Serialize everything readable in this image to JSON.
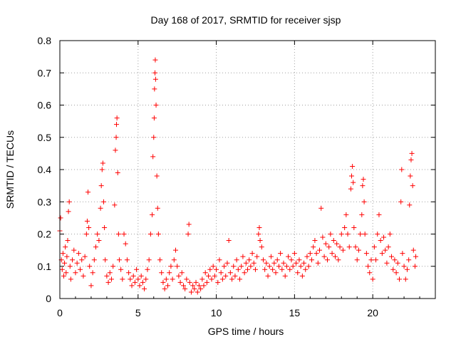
{
  "chart_data": {
    "type": "scatter",
    "title": "Day 168 of 2017, SRMTID for receiver sjsp",
    "xlabel": "GPS time / hours",
    "ylabel": "SRMTID / TECUs",
    "xlim": [
      0,
      24
    ],
    "ylim": [
      0,
      0.8
    ],
    "xticks": [
      "0",
      "5",
      "10",
      "15",
      "20"
    ],
    "yticks": [
      "0",
      "0.1",
      "0.2",
      "0.3",
      "0.4",
      "0.5",
      "0.6",
      "0.7",
      "0.8"
    ],
    "grid": true,
    "marker": "+",
    "color": "#ff0000",
    "series": [
      {
        "name": "SRMTID",
        "points": [
          [
            0.0,
            0.21
          ],
          [
            0.05,
            0.25
          ],
          [
            0.1,
            0.12
          ],
          [
            0.15,
            0.09
          ],
          [
            0.2,
            0.14
          ],
          [
            0.25,
            0.07
          ],
          [
            0.3,
            0.11
          ],
          [
            0.35,
            0.16
          ],
          [
            0.4,
            0.08
          ],
          [
            0.45,
            0.13
          ],
          [
            0.5,
            0.18
          ],
          [
            0.55,
            0.27
          ],
          [
            0.6,
            0.3
          ],
          [
            0.65,
            0.1
          ],
          [
            0.7,
            0.06
          ],
          [
            0.8,
            0.12
          ],
          [
            0.9,
            0.15
          ],
          [
            1.0,
            0.08
          ],
          [
            1.1,
            0.11
          ],
          [
            1.2,
            0.14
          ],
          [
            1.3,
            0.09
          ],
          [
            1.4,
            0.12
          ],
          [
            1.5,
            0.07
          ],
          [
            1.6,
            0.13
          ],
          [
            1.7,
            0.2
          ],
          [
            1.75,
            0.24
          ],
          [
            1.8,
            0.33
          ],
          [
            1.85,
            0.22
          ],
          [
            1.9,
            0.1
          ],
          [
            2.0,
            0.04
          ],
          [
            2.1,
            0.08
          ],
          [
            2.2,
            0.12
          ],
          [
            2.3,
            0.16
          ],
          [
            2.4,
            0.2
          ],
          [
            2.5,
            0.18
          ],
          [
            2.6,
            0.28
          ],
          [
            2.65,
            0.35
          ],
          [
            2.7,
            0.4
          ],
          [
            2.75,
            0.42
          ],
          [
            2.8,
            0.3
          ],
          [
            2.85,
            0.22
          ],
          [
            2.9,
            0.12
          ],
          [
            3.0,
            0.07
          ],
          [
            3.1,
            0.05
          ],
          [
            3.2,
            0.08
          ],
          [
            3.3,
            0.06
          ],
          [
            3.4,
            0.1
          ],
          [
            3.5,
            0.29
          ],
          [
            3.55,
            0.46
          ],
          [
            3.6,
            0.5
          ],
          [
            3.62,
            0.54
          ],
          [
            3.65,
            0.56
          ],
          [
            3.7,
            0.39
          ],
          [
            3.75,
            0.2
          ],
          [
            3.8,
            0.12
          ],
          [
            3.9,
            0.09
          ],
          [
            4.0,
            0.06
          ],
          [
            4.1,
            0.2
          ],
          [
            4.2,
            0.17
          ],
          [
            4.3,
            0.12
          ],
          [
            4.4,
            0.08
          ],
          [
            4.5,
            0.06
          ],
          [
            4.6,
            0.04
          ],
          [
            4.7,
            0.07
          ],
          [
            4.8,
            0.05
          ],
          [
            4.9,
            0.09
          ],
          [
            5.0,
            0.06
          ],
          [
            5.1,
            0.04
          ],
          [
            5.2,
            0.07
          ],
          [
            5.3,
            0.05
          ],
          [
            5.4,
            0.03
          ],
          [
            5.5,
            0.06
          ],
          [
            5.6,
            0.09
          ],
          [
            5.7,
            0.12
          ],
          [
            5.8,
            0.2
          ],
          [
            5.9,
            0.26
          ],
          [
            5.95,
            0.44
          ],
          [
            6.0,
            0.5
          ],
          [
            6.03,
            0.56
          ],
          [
            6.05,
            0.65
          ],
          [
            6.08,
            0.7
          ],
          [
            6.1,
            0.74
          ],
          [
            6.12,
            0.68
          ],
          [
            6.15,
            0.6
          ],
          [
            6.2,
            0.38
          ],
          [
            6.25,
            0.28
          ],
          [
            6.3,
            0.2
          ],
          [
            6.4,
            0.12
          ],
          [
            6.5,
            0.08
          ],
          [
            6.6,
            0.05
          ],
          [
            6.7,
            0.03
          ],
          [
            6.8,
            0.06
          ],
          [
            6.9,
            0.04
          ],
          [
            7.0,
            0.08
          ],
          [
            7.1,
            0.1
          ],
          [
            7.2,
            0.06
          ],
          [
            7.3,
            0.12
          ],
          [
            7.4,
            0.15
          ],
          [
            7.5,
            0.1
          ],
          [
            7.6,
            0.07
          ],
          [
            7.7,
            0.05
          ],
          [
            7.8,
            0.08
          ],
          [
            7.9,
            0.04
          ],
          [
            8.0,
            0.03
          ],
          [
            8.1,
            0.06
          ],
          [
            8.2,
            0.2
          ],
          [
            8.25,
            0.23
          ],
          [
            8.3,
            0.05
          ],
          [
            8.4,
            0.02
          ],
          [
            8.5,
            0.04
          ],
          [
            8.6,
            0.03
          ],
          [
            8.7,
            0.05
          ],
          [
            8.8,
            0.02
          ],
          [
            8.9,
            0.04
          ],
          [
            9.0,
            0.03
          ],
          [
            9.1,
            0.06
          ],
          [
            9.2,
            0.04
          ],
          [
            9.3,
            0.08
          ],
          [
            9.4,
            0.05
          ],
          [
            9.5,
            0.07
          ],
          [
            9.6,
            0.09
          ],
          [
            9.7,
            0.06
          ],
          [
            9.8,
            0.1
          ],
          [
            9.9,
            0.07
          ],
          [
            10.0,
            0.09
          ],
          [
            10.1,
            0.05
          ],
          [
            10.2,
            0.12
          ],
          [
            10.3,
            0.08
          ],
          [
            10.4,
            0.06
          ],
          [
            10.5,
            0.1
          ],
          [
            10.6,
            0.07
          ],
          [
            10.7,
            0.11
          ],
          [
            10.8,
            0.18
          ],
          [
            10.9,
            0.08
          ],
          [
            11.0,
            0.06
          ],
          [
            11.1,
            0.1
          ],
          [
            11.2,
            0.07
          ],
          [
            11.3,
            0.12
          ],
          [
            11.4,
            0.09
          ],
          [
            11.5,
            0.06
          ],
          [
            11.6,
            0.1
          ],
          [
            11.7,
            0.13
          ],
          [
            11.8,
            0.08
          ],
          [
            11.9,
            0.11
          ],
          [
            12.0,
            0.09
          ],
          [
            12.1,
            0.12
          ],
          [
            12.2,
            0.1
          ],
          [
            12.3,
            0.14
          ],
          [
            12.4,
            0.11
          ],
          [
            12.5,
            0.09
          ],
          [
            12.6,
            0.13
          ],
          [
            12.7,
            0.2
          ],
          [
            12.75,
            0.22
          ],
          [
            12.8,
            0.18
          ],
          [
            12.9,
            0.16
          ],
          [
            13.0,
            0.12
          ],
          [
            13.1,
            0.09
          ],
          [
            13.2,
            0.11
          ],
          [
            13.3,
            0.07
          ],
          [
            13.4,
            0.1
          ],
          [
            13.5,
            0.13
          ],
          [
            13.6,
            0.09
          ],
          [
            13.7,
            0.11
          ],
          [
            13.8,
            0.08
          ],
          [
            13.9,
            0.12
          ],
          [
            14.0,
            0.1
          ],
          [
            14.1,
            0.14
          ],
          [
            14.2,
            0.09
          ],
          [
            14.3,
            0.11
          ],
          [
            14.4,
            0.07
          ],
          [
            14.5,
            0.1
          ],
          [
            14.6,
            0.13
          ],
          [
            14.7,
            0.09
          ],
          [
            14.8,
            0.12
          ],
          [
            14.9,
            0.1
          ],
          [
            15.0,
            0.14
          ],
          [
            15.1,
            0.11
          ],
          [
            15.2,
            0.08
          ],
          [
            15.3,
            0.12
          ],
          [
            15.4,
            0.1
          ],
          [
            15.5,
            0.07
          ],
          [
            15.6,
            0.11
          ],
          [
            15.7,
            0.09
          ],
          [
            15.8,
            0.13
          ],
          [
            15.9,
            0.1
          ],
          [
            16.0,
            0.14
          ],
          [
            16.1,
            0.12
          ],
          [
            16.2,
            0.16
          ],
          [
            16.3,
            0.18
          ],
          [
            16.4,
            0.14
          ],
          [
            16.5,
            0.11
          ],
          [
            16.6,
            0.15
          ],
          [
            16.7,
            0.28
          ],
          [
            16.8,
            0.19
          ],
          [
            16.9,
            0.13
          ],
          [
            17.0,
            0.17
          ],
          [
            17.1,
            0.12
          ],
          [
            17.2,
            0.16
          ],
          [
            17.3,
            0.2
          ],
          [
            17.4,
            0.14
          ],
          [
            17.5,
            0.18
          ],
          [
            17.6,
            0.13
          ],
          [
            17.7,
            0.17
          ],
          [
            17.8,
            0.12
          ],
          [
            17.9,
            0.16
          ],
          [
            18.0,
            0.2
          ],
          [
            18.1,
            0.15
          ],
          [
            18.2,
            0.22
          ],
          [
            18.3,
            0.26
          ],
          [
            18.4,
            0.2
          ],
          [
            18.5,
            0.16
          ],
          [
            18.6,
            0.34
          ],
          [
            18.65,
            0.38
          ],
          [
            18.7,
            0.41
          ],
          [
            18.75,
            0.36
          ],
          [
            18.8,
            0.22
          ],
          [
            18.9,
            0.16
          ],
          [
            19.0,
            0.12
          ],
          [
            19.1,
            0.15
          ],
          [
            19.2,
            0.2
          ],
          [
            19.3,
            0.26
          ],
          [
            19.35,
            0.35
          ],
          [
            19.4,
            0.37
          ],
          [
            19.45,
            0.3
          ],
          [
            19.5,
            0.2
          ],
          [
            19.6,
            0.14
          ],
          [
            19.7,
            0.1
          ],
          [
            19.8,
            0.08
          ],
          [
            19.9,
            0.12
          ],
          [
            20.0,
            0.06
          ],
          [
            20.1,
            0.16
          ],
          [
            20.2,
            0.12
          ],
          [
            20.3,
            0.2
          ],
          [
            20.4,
            0.26
          ],
          [
            20.5,
            0.18
          ],
          [
            20.6,
            0.14
          ],
          [
            20.7,
            0.19
          ],
          [
            20.8,
            0.15
          ],
          [
            20.9,
            0.11
          ],
          [
            21.0,
            0.16
          ],
          [
            21.1,
            0.2
          ],
          [
            21.2,
            0.13
          ],
          [
            21.3,
            0.09
          ],
          [
            21.4,
            0.12
          ],
          [
            21.5,
            0.08
          ],
          [
            21.6,
            0.11
          ],
          [
            21.7,
            0.06
          ],
          [
            21.8,
            0.3
          ],
          [
            21.85,
            0.4
          ],
          [
            21.9,
            0.14
          ],
          [
            22.0,
            0.1
          ],
          [
            22.1,
            0.06
          ],
          [
            22.2,
            0.09
          ],
          [
            22.3,
            0.12
          ],
          [
            22.35,
            0.29
          ],
          [
            22.4,
            0.38
          ],
          [
            22.45,
            0.43
          ],
          [
            22.5,
            0.45
          ],
          [
            22.55,
            0.35
          ],
          [
            22.6,
            0.15
          ],
          [
            22.7,
            0.1
          ],
          [
            22.75,
            0.13
          ]
        ]
      }
    ]
  }
}
